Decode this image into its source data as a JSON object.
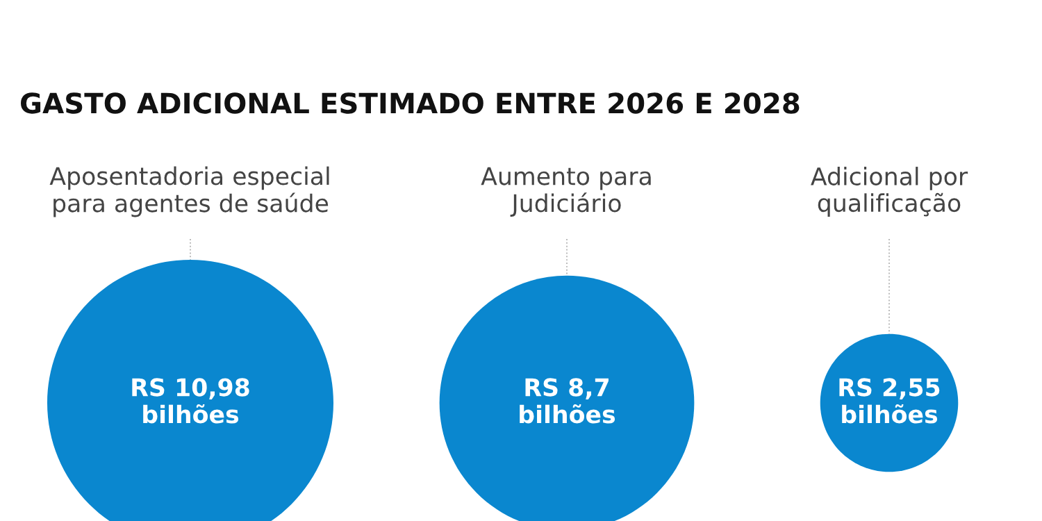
{
  "chart_data": {
    "type": "other",
    "title": "GASTO ADICIONAL ESTIMADO ENTRE 2026 E 2028",
    "categories": [
      "Aposentadoria especial\npara agentes de saúde",
      "Aumento para\nJudiciário",
      "Adicional por\nqualificação"
    ],
    "values": [
      10.98,
      8.7,
      2.55
    ],
    "value_labels": [
      "RS 10,98\nbilhões",
      "RS 8,7\nbilhões",
      "RS 2,55\nbilhões"
    ],
    "color": "#0a87cf"
  }
}
